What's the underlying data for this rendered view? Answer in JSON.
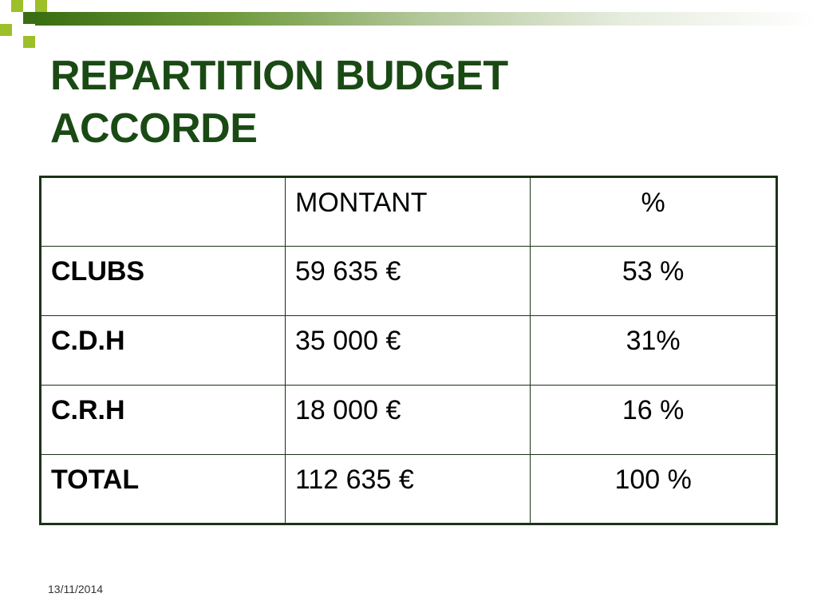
{
  "slide": {
    "title": "REPARTITION  BUDGET\nACCORDE",
    "date": "13/11/2014",
    "accent_color": "#1a4a14"
  },
  "table": {
    "header": [
      "",
      "MONTANT",
      "%"
    ],
    "rows": [
      [
        "CLUBS",
        "59 635   €",
        "53 %"
      ],
      [
        "C.D.H",
        "35 000   €",
        "31%"
      ],
      [
        "C.R.H",
        "18 000   €",
        "16 %"
      ],
      [
        "TOTAL",
        "112 635 €",
        "100 %"
      ]
    ]
  }
}
